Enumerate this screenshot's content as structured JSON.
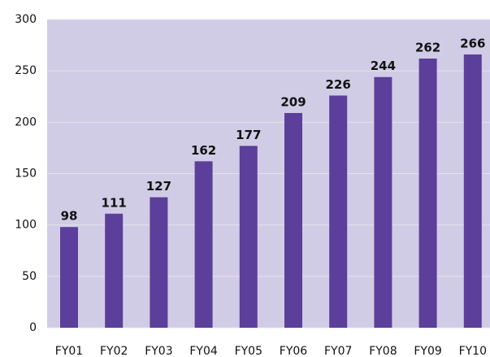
{
  "chart_data": {
    "type": "bar",
    "categories": [
      "FY01",
      "FY02",
      "FY03",
      "FY04",
      "FY05",
      "FY06",
      "FY07",
      "FY08",
      "FY09",
      "FY10"
    ],
    "values": [
      98,
      111,
      127,
      162,
      177,
      209,
      226,
      244,
      262,
      266
    ],
    "color": "#5b3f9a",
    "ylim": [
      0,
      300
    ],
    "yticks": [
      0,
      50,
      100,
      150,
      200,
      250,
      300
    ],
    "grid": true
  }
}
